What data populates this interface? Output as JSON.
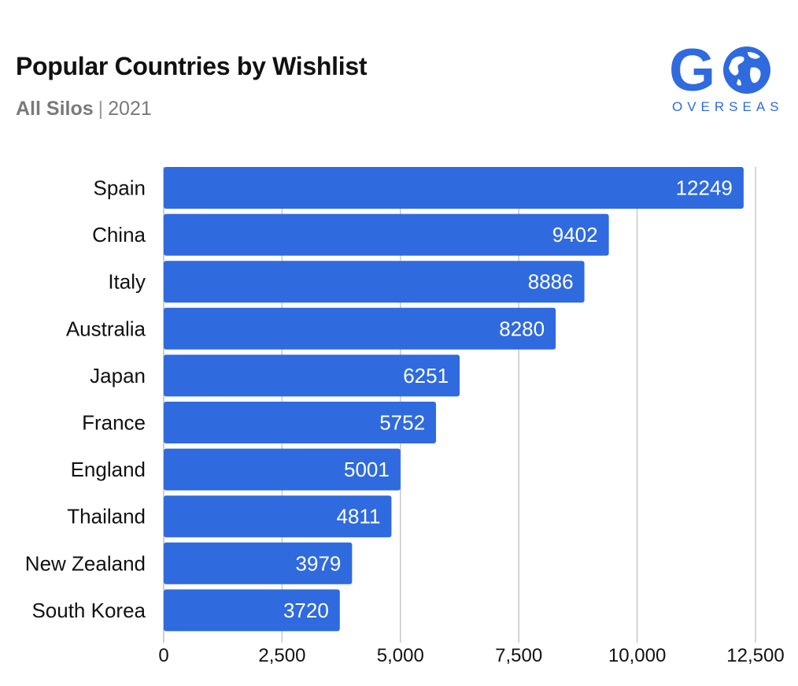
{
  "header": {
    "title": "Popular Countries by Wishlist",
    "subtitle_strong": "All Silos",
    "subtitle_sep": "|",
    "subtitle_year": "2021"
  },
  "logo": {
    "main": "G",
    "sub": "OVERSEAS",
    "icon": "globe-icon"
  },
  "colors": {
    "bar": "#2f6ade",
    "grid": "#c8c8c8",
    "title": "#111111",
    "subtitle": "#7a7a7a"
  },
  "chart_data": {
    "type": "bar",
    "orientation": "horizontal",
    "categories": [
      "Spain",
      "China",
      "Italy",
      "Australia",
      "Japan",
      "France",
      "England",
      "Thailand",
      "New Zealand",
      "South Korea"
    ],
    "values": [
      12249,
      9402,
      8886,
      8280,
      6251,
      5752,
      5001,
      4811,
      3979,
      3720
    ],
    "xlim": [
      0,
      12500
    ],
    "xticks": [
      0,
      2500,
      5000,
      7500,
      10000,
      12500
    ],
    "xtick_labels": [
      "0",
      "2,500",
      "5,000",
      "7,500",
      "10,000",
      "12,500"
    ],
    "grid": true,
    "data_labels": true
  }
}
